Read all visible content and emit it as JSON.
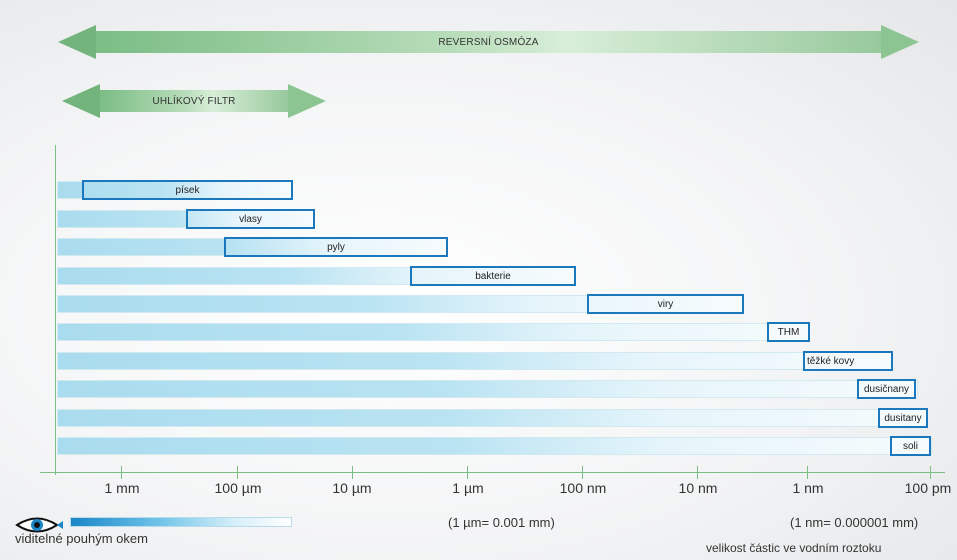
{
  "arrows": {
    "reverse_osmosis": "REVERSNÍ OSMÓZA",
    "carbon_filter": "UHLÍKOVÝ FILTR"
  },
  "particles": [
    {
      "label": "písek"
    },
    {
      "label": "vlasy"
    },
    {
      "label": "pyly"
    },
    {
      "label": "bakterie"
    },
    {
      "label": "viry"
    },
    {
      "label": "THM"
    },
    {
      "label": "těžké kovy"
    },
    {
      "label": "dusičnany"
    },
    {
      "label": "dusitany"
    },
    {
      "label": "soli"
    }
  ],
  "axis": {
    "ticks": [
      "1 mm",
      "100 µm",
      "10 µm",
      "1 µm",
      "100 nm",
      "10 nm",
      "1 nm",
      "100 pm"
    ],
    "note_um": "(1 µm= 0.001 mm)",
    "note_nm": "(1 nm= 0.000001 mm)",
    "title": "velikost částic ve vodním roztoku"
  },
  "legend": {
    "visible_label": "viditelné pouhým okem"
  },
  "colors": {
    "arrow_green": "#7bbd85",
    "box_blue": "#1c78bd",
    "bar_light_blue": "#a9dcee"
  }
}
